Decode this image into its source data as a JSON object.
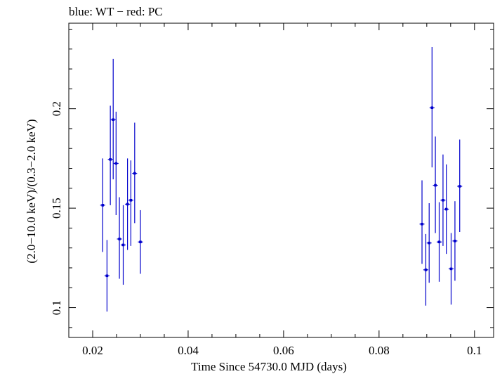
{
  "chart_data": {
    "type": "scatter",
    "title": "blue: WT − red: PC",
    "xlabel": "Time Since 54730.0 MJD (days)",
    "ylabel": "(2.0−10.0 keV)/(0.3−2.0 keV)",
    "xlim": [
      0.015,
      0.104
    ],
    "ylim": [
      0.085,
      0.243
    ],
    "x_ticks": [
      {
        "value": 0.02,
        "label": "0.02"
      },
      {
        "value": 0.04,
        "label": "0.04"
      },
      {
        "value": 0.06,
        "label": "0.06"
      },
      {
        "value": 0.08,
        "label": "0.08"
      },
      {
        "value": 0.1,
        "label": "0.1"
      }
    ],
    "y_ticks": [
      {
        "value": 0.1,
        "label": "0.1"
      },
      {
        "value": 0.15,
        "label": "0.15"
      },
      {
        "value": 0.2,
        "label": "0.2"
      }
    ],
    "series": [
      {
        "name": "WT",
        "color": "#0000cc",
        "points": [
          {
            "x": 0.0221,
            "y": 0.1515,
            "yerr_lo": 0.0235,
            "yerr_hi": 0.0235
          },
          {
            "x": 0.023,
            "y": 0.116,
            "yerr_lo": 0.018,
            "yerr_hi": 0.018
          },
          {
            "x": 0.0237,
            "y": 0.1745,
            "yerr_lo": 0.023,
            "yerr_hi": 0.027
          },
          {
            "x": 0.0243,
            "y": 0.1945,
            "yerr_lo": 0.03,
            "yerr_hi": 0.0305
          },
          {
            "x": 0.0249,
            "y": 0.1725,
            "yerr_lo": 0.026,
            "yerr_hi": 0.026
          },
          {
            "x": 0.0256,
            "y": 0.1345,
            "yerr_lo": 0.02,
            "yerr_hi": 0.021
          },
          {
            "x": 0.0264,
            "y": 0.1315,
            "yerr_lo": 0.02,
            "yerr_hi": 0.02
          },
          {
            "x": 0.0273,
            "y": 0.152,
            "yerr_lo": 0.023,
            "yerr_hi": 0.023
          },
          {
            "x": 0.028,
            "y": 0.154,
            "yerr_lo": 0.023,
            "yerr_hi": 0.02
          },
          {
            "x": 0.0288,
            "y": 0.1675,
            "yerr_lo": 0.025,
            "yerr_hi": 0.0255
          },
          {
            "x": 0.03,
            "y": 0.133,
            "yerr_lo": 0.016,
            "yerr_hi": 0.016
          },
          {
            "x": 0.089,
            "y": 0.142,
            "yerr_lo": 0.02,
            "yerr_hi": 0.022
          },
          {
            "x": 0.0898,
            "y": 0.119,
            "yerr_lo": 0.018,
            "yerr_hi": 0.018
          },
          {
            "x": 0.0905,
            "y": 0.1325,
            "yerr_lo": 0.02,
            "yerr_hi": 0.02
          },
          {
            "x": 0.0911,
            "y": 0.2005,
            "yerr_lo": 0.03,
            "yerr_hi": 0.0305
          },
          {
            "x": 0.0918,
            "y": 0.1615,
            "yerr_lo": 0.024,
            "yerr_hi": 0.0245
          },
          {
            "x": 0.0926,
            "y": 0.133,
            "yerr_lo": 0.02,
            "yerr_hi": 0.02
          },
          {
            "x": 0.0934,
            "y": 0.154,
            "yerr_lo": 0.023,
            "yerr_hi": 0.023
          },
          {
            "x": 0.0941,
            "y": 0.1495,
            "yerr_lo": 0.0225,
            "yerr_hi": 0.0225
          },
          {
            "x": 0.0951,
            "y": 0.1195,
            "yerr_lo": 0.018,
            "yerr_hi": 0.018
          },
          {
            "x": 0.0959,
            "y": 0.1335,
            "yerr_lo": 0.02,
            "yerr_hi": 0.02
          },
          {
            "x": 0.0969,
            "y": 0.161,
            "yerr_lo": 0.023,
            "yerr_hi": 0.0235
          }
        ]
      }
    ]
  }
}
